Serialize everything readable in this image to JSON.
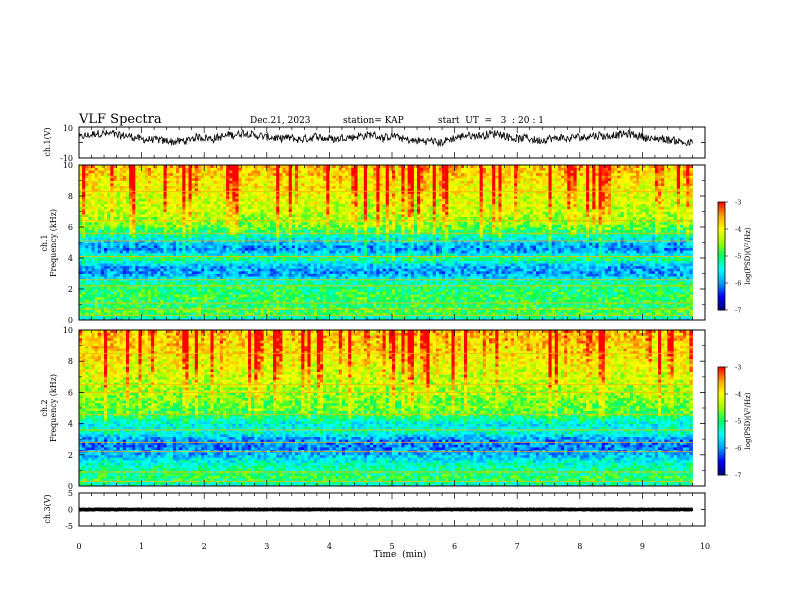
{
  "header": {
    "title": "VLF Spectra",
    "date": "Dec.21, 2023",
    "station": "station= KAP",
    "start": "start  UT  =   3  : 20 : 1"
  },
  "chart_data": [
    {
      "type": "line",
      "panel": "ch1-waveform",
      "ylabel": "ch.1(V)",
      "ylim": [
        -10,
        10
      ],
      "yticks": [
        "10",
        "-10"
      ],
      "xlim": [
        0,
        10
      ],
      "x_end": 9.8,
      "series": [
        {
          "color": "#000000",
          "level": 0,
          "amplitude_range": [
            -6,
            8
          ]
        }
      ]
    },
    {
      "type": "heatmap",
      "panel": "ch1-spectrogram",
      "ylabel": "ch.1\nFrequency (kHz)",
      "ylim": [
        0,
        10
      ],
      "yticks": [
        "0",
        "2",
        "4",
        "6",
        "8",
        "10"
      ],
      "xlim": [
        0,
        10
      ],
      "x_end": 9.8,
      "value_range": [
        -7,
        -3
      ],
      "colorbar": {
        "ticks": [
          "-3",
          "-4",
          "-5",
          "-6",
          "-7"
        ],
        "label": "log(PSD)(V²/Hz)"
      },
      "band_profile": [
        {
          "f": 0.0,
          "v": -5.6
        },
        {
          "f": 0.5,
          "v": -4.8
        },
        {
          "f": 1.0,
          "v": -5.0
        },
        {
          "f": 1.5,
          "v": -4.9
        },
        {
          "f": 2.0,
          "v": -5.0
        },
        {
          "f": 2.5,
          "v": -5.2
        },
        {
          "f": 3.0,
          "v": -6.0
        },
        {
          "f": 3.5,
          "v": -5.9
        },
        {
          "f": 4.0,
          "v": -5.0
        },
        {
          "f": 4.5,
          "v": -6.1
        },
        {
          "f": 5.0,
          "v": -5.9
        },
        {
          "f": 5.5,
          "v": -5.3
        },
        {
          "f": 6.0,
          "v": -4.8
        },
        {
          "f": 6.5,
          "v": -4.6
        },
        {
          "f": 7.0,
          "v": -4.4
        },
        {
          "f": 8.0,
          "v": -4.3
        },
        {
          "f": 9.0,
          "v": -4.1
        },
        {
          "f": 10.0,
          "v": -3.9
        }
      ],
      "lines_khz": [
        0.3,
        0.7,
        1.1,
        2.2,
        2.6,
        4.1,
        5.1,
        5.6,
        6.4,
        8.3
      ]
    },
    {
      "type": "heatmap",
      "panel": "ch2-spectrogram",
      "ylabel": "ch.2\nFrequency (kHz)",
      "ylim": [
        0,
        10
      ],
      "yticks": [
        "0",
        "2",
        "4",
        "6",
        "8",
        "10"
      ],
      "xlim": [
        0,
        10
      ],
      "x_end": 9.8,
      "value_range": [
        -7,
        -3
      ],
      "colorbar": {
        "ticks": [
          "-3",
          "-4",
          "-5",
          "-6",
          "-7"
        ],
        "label": "log(PSD)(V²/Hz)"
      },
      "band_profile": [
        {
          "f": 0.0,
          "v": -5.4
        },
        {
          "f": 0.5,
          "v": -4.9
        },
        {
          "f": 1.0,
          "v": -5.1
        },
        {
          "f": 1.5,
          "v": -5.4
        },
        {
          "f": 2.0,
          "v": -5.8
        },
        {
          "f": 2.5,
          "v": -6.1
        },
        {
          "f": 3.0,
          "v": -6.0
        },
        {
          "f": 3.5,
          "v": -5.3
        },
        {
          "f": 4.0,
          "v": -5.6
        },
        {
          "f": 4.5,
          "v": -5.0
        },
        {
          "f": 5.0,
          "v": -4.8
        },
        {
          "f": 6.0,
          "v": -4.6
        },
        {
          "f": 7.0,
          "v": -4.4
        },
        {
          "f": 8.0,
          "v": -4.2
        },
        {
          "f": 9.0,
          "v": -4.0
        },
        {
          "f": 10.0,
          "v": -3.9
        }
      ],
      "lines_khz": [
        0.3,
        0.9,
        2.2,
        2.8,
        3.6,
        4.6,
        6.0,
        6.5,
        8.5
      ]
    },
    {
      "type": "line",
      "panel": "ch3-waveform",
      "ylabel": "ch.3(V)",
      "ylim": [
        -5,
        5
      ],
      "yticks": [
        "5",
        "0",
        "-5"
      ],
      "xlim": [
        0,
        10
      ],
      "x_end": 9.8,
      "series": [
        {
          "color": "#000000",
          "level": 0,
          "amplitude_range": [
            -0.6,
            0.6
          ]
        }
      ],
      "xticks": [
        "0",
        "1",
        "2",
        "3",
        "4",
        "5",
        "6",
        "7",
        "8",
        "9",
        "10"
      ],
      "xlabel": "Time  (min)"
    }
  ],
  "colormap": [
    "#000080",
    "#0000ff",
    "#00a0ff",
    "#00ffff",
    "#00ff60",
    "#a0ff00",
    "#ffff00",
    "#ffa000",
    "#ff0000",
    "#ffffff"
  ]
}
